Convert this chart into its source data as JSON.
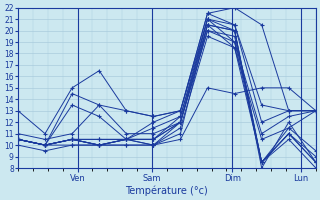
{
  "xlabel": "Température (°c)",
  "bg_color": "#cce8f0",
  "line_color": "#1a3a9e",
  "grid_color": "#aaccdd",
  "tick_label_color": "#1a3a9e",
  "ylim": [
    8,
    22
  ],
  "yticks": [
    8,
    9,
    10,
    11,
    12,
    13,
    14,
    15,
    16,
    17,
    18,
    19,
    20,
    21,
    22
  ],
  "day_labels": [
    "Ven",
    "Sam",
    "Dim",
    "Lun"
  ],
  "day_positions": [
    0.2,
    0.45,
    0.72,
    0.95
  ],
  "xlim": [
    0,
    1
  ],
  "num_points": 12,
  "series": [
    [
      13.0,
      11.0,
      15.0,
      16.5,
      13.0,
      12.5,
      13.0,
      21.5,
      22.0,
      20.5,
      13.0,
      13.0
    ],
    [
      11.0,
      10.5,
      11.0,
      13.5,
      13.0,
      12.5,
      13.0,
      21.0,
      20.5,
      13.5,
      13.0,
      13.0
    ],
    [
      10.5,
      10.0,
      10.5,
      10.5,
      10.5,
      12.0,
      13.0,
      21.5,
      20.5,
      12.0,
      13.0,
      13.0
    ],
    [
      10.5,
      10.0,
      13.5,
      12.5,
      10.5,
      11.5,
      12.5,
      21.0,
      19.0,
      11.0,
      12.5,
      13.0
    ],
    [
      10.5,
      10.0,
      14.5,
      13.5,
      11.0,
      11.0,
      12.0,
      20.5,
      18.5,
      10.5,
      11.5,
      13.0
    ],
    [
      10.5,
      10.0,
      10.5,
      10.5,
      10.5,
      10.5,
      12.0,
      21.0,
      20.0,
      8.5,
      11.5,
      9.5
    ],
    [
      10.5,
      10.0,
      10.5,
      10.0,
      10.5,
      10.5,
      12.5,
      20.5,
      20.0,
      8.5,
      11.0,
      9.0
    ],
    [
      10.5,
      10.0,
      10.5,
      10.0,
      10.5,
      10.5,
      12.0,
      20.0,
      19.5,
      8.5,
      11.0,
      8.5
    ],
    [
      10.5,
      10.0,
      10.5,
      10.0,
      10.5,
      10.0,
      12.0,
      20.0,
      19.0,
      8.5,
      11.0,
      8.5
    ],
    [
      10.5,
      10.0,
      10.5,
      10.0,
      10.5,
      10.0,
      11.5,
      19.5,
      18.5,
      8.5,
      10.5,
      8.0
    ],
    [
      10.5,
      10.0,
      10.0,
      10.0,
      10.0,
      10.0,
      11.0,
      20.5,
      20.0,
      8.0,
      12.0,
      8.5
    ],
    [
      10.0,
      9.5,
      10.0,
      10.0,
      10.0,
      10.0,
      10.5,
      15.0,
      14.5,
      15.0,
      15.0,
      13.0
    ]
  ]
}
